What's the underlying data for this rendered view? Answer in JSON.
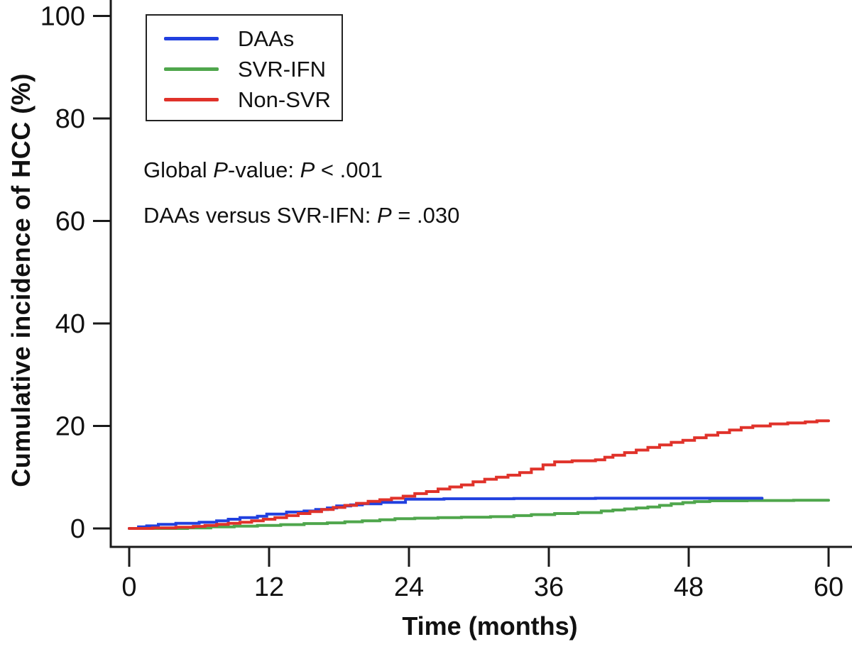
{
  "chart_data": {
    "type": "line",
    "subtype": "step-cumulative-incidence",
    "title": "",
    "xlabel": "Time (months)",
    "ylabel": "Cumulative incidence of HCC (%)",
    "xlim": [
      0,
      60
    ],
    "ylim": [
      0,
      100
    ],
    "xticks": [
      0,
      12,
      24,
      36,
      48,
      60
    ],
    "yticks": [
      0,
      20,
      40,
      60,
      80,
      100
    ],
    "grid": false,
    "legend_position": "top-left",
    "axis_color": "#1a1a1a",
    "series": [
      {
        "name": "DAAs",
        "color": "#2140df",
        "end_month": 54.3,
        "final_value_pct": 5.9,
        "points": [
          [
            0,
            0
          ],
          [
            0.8,
            0.3
          ],
          [
            1.5,
            0.5
          ],
          [
            2.5,
            0.8
          ],
          [
            4,
            1.0
          ],
          [
            6,
            1.2
          ],
          [
            7.5,
            1.5
          ],
          [
            8.5,
            1.8
          ],
          [
            9.5,
            2.1
          ],
          [
            11,
            2.4
          ],
          [
            11.8,
            2.8
          ],
          [
            13.5,
            3.2
          ],
          [
            15,
            3.4
          ],
          [
            16,
            3.7
          ],
          [
            17,
            4.0
          ],
          [
            17.8,
            4.4
          ],
          [
            19,
            4.6
          ],
          [
            20,
            4.8
          ],
          [
            21.6,
            5.1
          ],
          [
            23.7,
            5.7
          ],
          [
            27,
            5.8
          ],
          [
            33,
            5.85
          ],
          [
            40,
            5.9
          ]
        ]
      },
      {
        "name": "SVR-IFN",
        "color": "#4fa64c",
        "end_month": 60,
        "final_value_pct": 5.5,
        "points": [
          [
            0,
            0
          ],
          [
            5,
            0.1
          ],
          [
            7,
            0.3
          ],
          [
            9,
            0.45
          ],
          [
            11,
            0.6
          ],
          [
            13,
            0.75
          ],
          [
            15,
            0.95
          ],
          [
            17,
            1.1
          ],
          [
            18.5,
            1.3
          ],
          [
            20,
            1.5
          ],
          [
            21.5,
            1.7
          ],
          [
            22.8,
            1.9
          ],
          [
            24.5,
            2.0
          ],
          [
            26.5,
            2.1
          ],
          [
            28.5,
            2.2
          ],
          [
            31,
            2.3
          ],
          [
            33,
            2.5
          ],
          [
            34.5,
            2.7
          ],
          [
            36.5,
            2.9
          ],
          [
            38.5,
            3.1
          ],
          [
            40.5,
            3.4
          ],
          [
            41.5,
            3.6
          ],
          [
            42.5,
            3.8
          ],
          [
            43.5,
            4.0
          ],
          [
            44.5,
            4.2
          ],
          [
            45.5,
            4.5
          ],
          [
            46.5,
            4.8
          ],
          [
            47.5,
            5.05
          ],
          [
            48.5,
            5.25
          ],
          [
            49.8,
            5.4
          ],
          [
            53,
            5.45
          ],
          [
            57,
            5.5
          ]
        ]
      },
      {
        "name": "Non-SVR",
        "color": "#e0322a",
        "end_month": 60,
        "final_value_pct": 21.0,
        "points": [
          [
            0,
            0
          ],
          [
            2,
            0.1
          ],
          [
            4,
            0.25
          ],
          [
            5.5,
            0.4
          ],
          [
            6.5,
            0.6
          ],
          [
            7.5,
            0.8
          ],
          [
            8.5,
            1.0
          ],
          [
            9.5,
            1.2
          ],
          [
            10.5,
            1.5
          ],
          [
            11.5,
            1.8
          ],
          [
            12.5,
            2.1
          ],
          [
            13.5,
            2.5
          ],
          [
            14.5,
            2.9
          ],
          [
            15.5,
            3.3
          ],
          [
            16.5,
            3.7
          ],
          [
            17.5,
            4.1
          ],
          [
            18.5,
            4.5
          ],
          [
            19.5,
            4.9
          ],
          [
            20.5,
            5.3
          ],
          [
            21.5,
            5.6
          ],
          [
            22.5,
            5.9
          ],
          [
            23.5,
            6.3
          ],
          [
            24.5,
            6.8
          ],
          [
            25.5,
            7.2
          ],
          [
            26.5,
            7.7
          ],
          [
            27.5,
            8.1
          ],
          [
            28.5,
            8.5
          ],
          [
            29.5,
            9.1
          ],
          [
            30.5,
            9.6
          ],
          [
            31.5,
            10.0
          ],
          [
            32.5,
            10.4
          ],
          [
            33.5,
            10.9
          ],
          [
            34.5,
            11.6
          ],
          [
            35.5,
            12.4
          ],
          [
            36.5,
            13.0
          ],
          [
            38,
            13.2
          ],
          [
            40,
            13.4
          ],
          [
            40.8,
            13.9
          ],
          [
            41.5,
            14.3
          ],
          [
            42.5,
            14.8
          ],
          [
            43.5,
            15.3
          ],
          [
            44.5,
            15.8
          ],
          [
            45.5,
            16.3
          ],
          [
            46.5,
            16.8
          ],
          [
            47.5,
            17.2
          ],
          [
            48.5,
            17.7
          ],
          [
            49.5,
            18.2
          ],
          [
            50.5,
            18.7
          ],
          [
            51.5,
            19.2
          ],
          [
            52.5,
            19.7
          ],
          [
            53.5,
            20.0
          ],
          [
            55,
            20.4
          ],
          [
            56.5,
            20.6
          ],
          [
            58,
            20.8
          ],
          [
            59,
            21.0
          ]
        ]
      }
    ],
    "annotations": [
      {
        "text": "Global P-value: P < .001",
        "parts": [
          {
            "t": "Global ",
            "italic": false
          },
          {
            "t": "P",
            "italic": true
          },
          {
            "t": "-value: ",
            "italic": false
          },
          {
            "t": "P",
            "italic": true
          },
          {
            "t": " < .001",
            "italic": false
          }
        ]
      },
      {
        "text": "DAAs versus SVR-IFN: P = .030",
        "parts": [
          {
            "t": "DAAs versus SVR-IFN: ",
            "italic": false
          },
          {
            "t": "P",
            "italic": true
          },
          {
            "t": " = .030",
            "italic": false
          }
        ]
      }
    ]
  }
}
